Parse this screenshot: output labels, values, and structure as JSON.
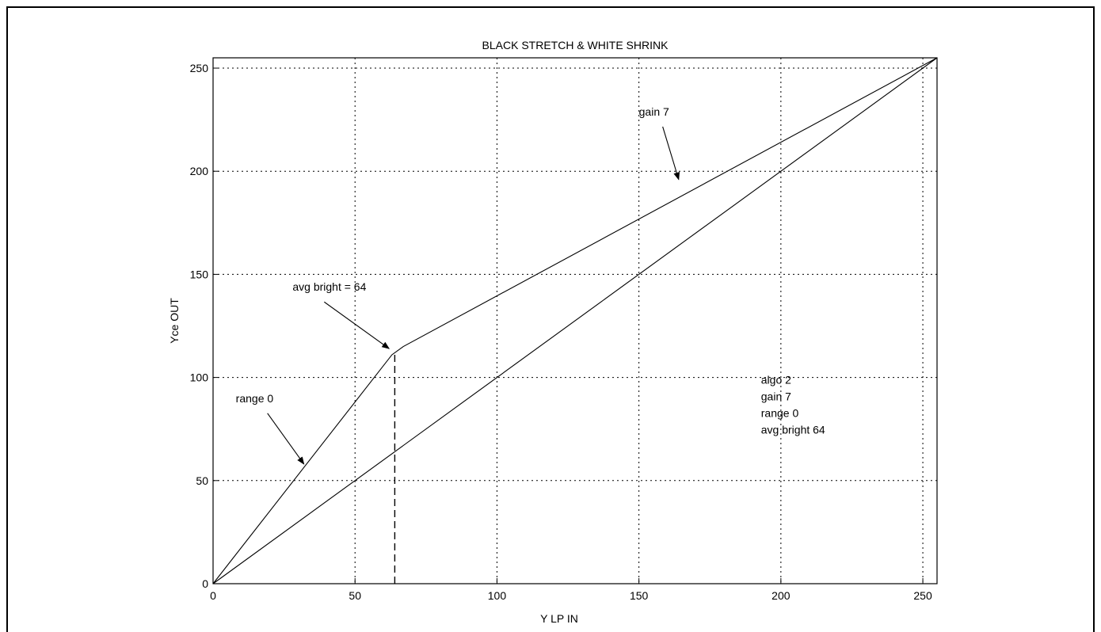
{
  "chart_data": {
    "type": "line",
    "title": "BLACK STRETCH & WHITE SHRINK",
    "xlabel": "Y LP IN",
    "ylabel": "Yce OUT",
    "xlim": [
      0,
      255
    ],
    "ylim": [
      0,
      255
    ],
    "x_ticks": [
      0,
      50,
      100,
      150,
      200,
      250
    ],
    "y_ticks": [
      0,
      50,
      100,
      150,
      200,
      250
    ],
    "grid": true,
    "series": [
      {
        "x": [
          0,
          63,
          67,
          255
        ],
        "y": [
          0,
          111,
          115,
          255
        ]
      },
      {
        "x": [
          0,
          255
        ],
        "y": [
          0,
          255
        ]
      }
    ],
    "vertical_marker": {
      "x": 64,
      "y_from": 0,
      "y_to": 112
    },
    "annotations": [
      {
        "text": "range 0",
        "arrow_to": [
          32,
          58
        ],
        "text_at": [
          8,
          88
        ]
      },
      {
        "text": "avg bright = 64",
        "arrow_to": [
          62,
          114
        ],
        "text_at": [
          28,
          142
        ]
      },
      {
        "text": "gain 7",
        "arrow_to": [
          164,
          196
        ],
        "text_at": [
          150,
          227
        ]
      }
    ],
    "info_box": [
      "algo 2",
      "gain 7",
      "range 0",
      "avg bright 64"
    ]
  }
}
